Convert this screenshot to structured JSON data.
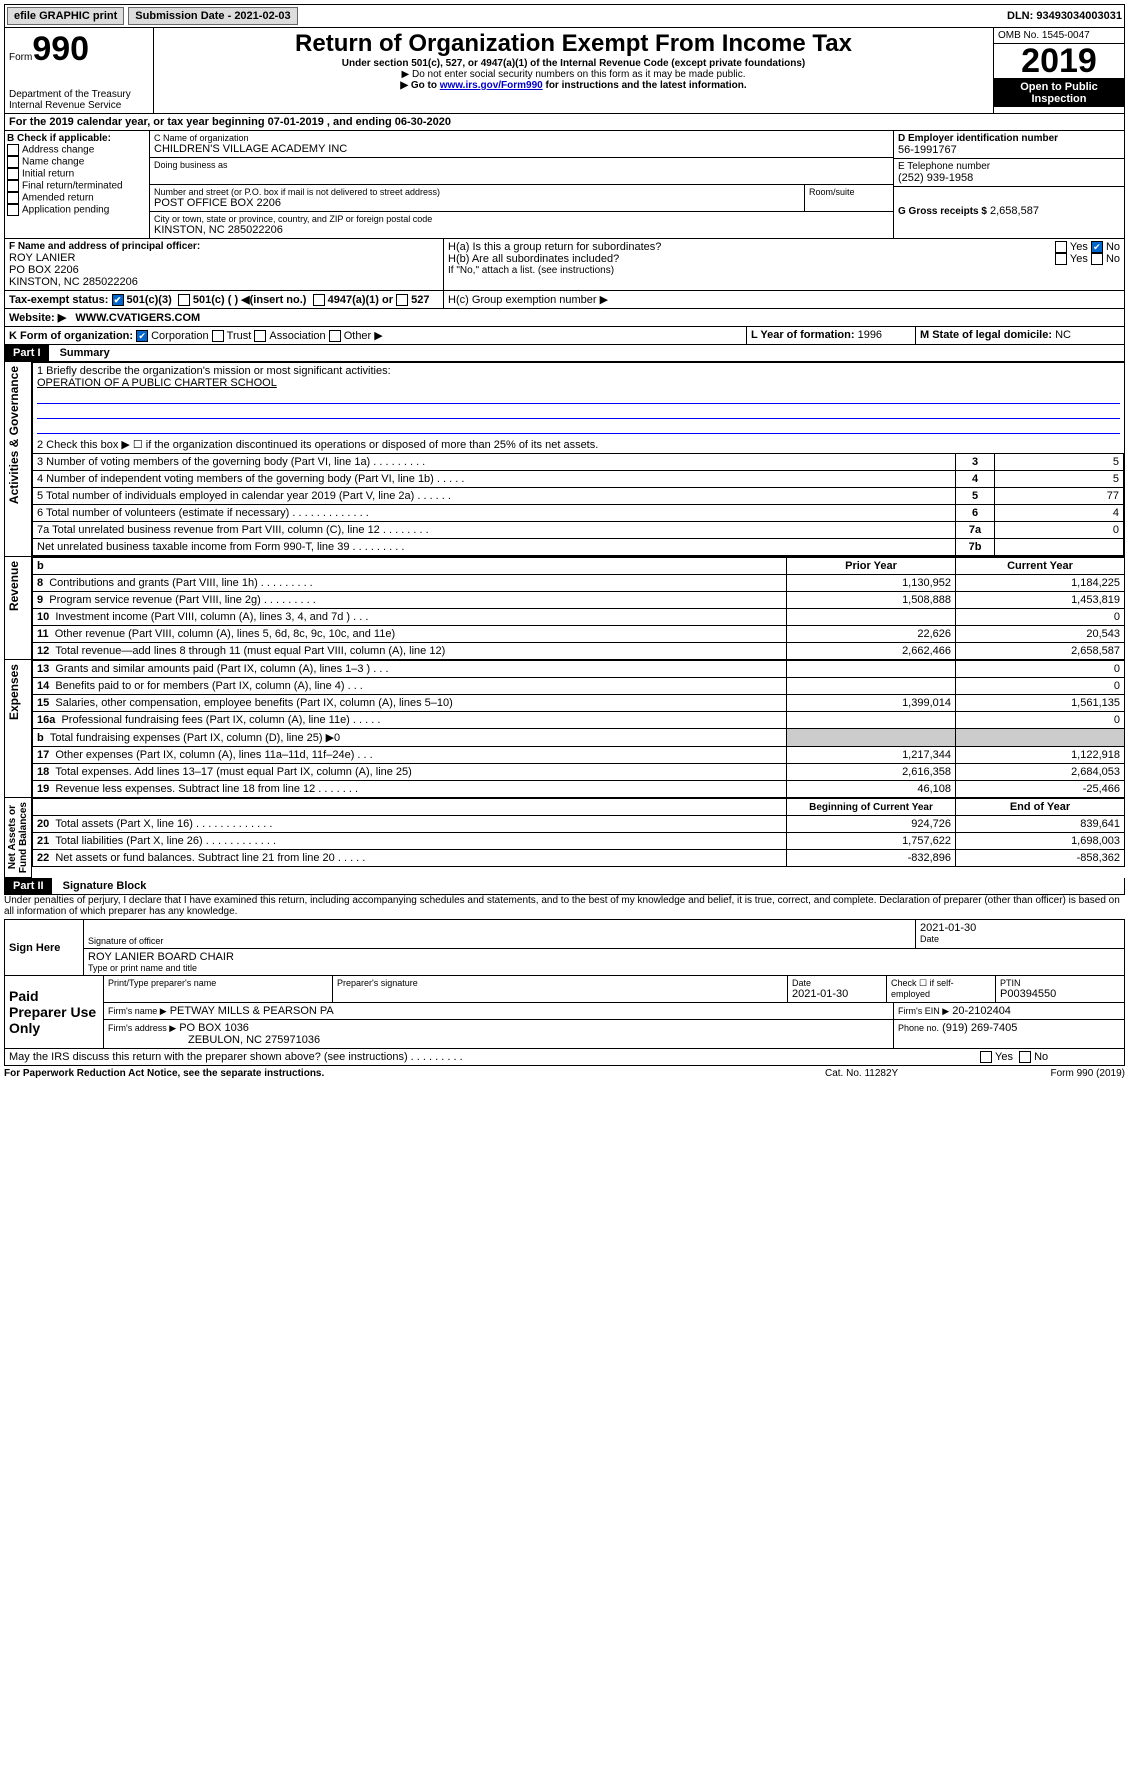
{
  "topbar": {
    "efile": "efile GRAPHIC print",
    "subdate_label": "Submission Date - 2021-02-03",
    "dln": "DLN: 93493034003031"
  },
  "header": {
    "form_label": "Form",
    "form_no": "990",
    "title": "Return of Organization Exempt From Income Tax",
    "subtitle": "Under section 501(c), 527, or 4947(a)(1) of the Internal Revenue Code (except private foundations)",
    "note1": "▶ Do not enter social security numbers on this form as it may be made public.",
    "note2_pre": "▶ Go to ",
    "note2_link": "www.irs.gov/Form990",
    "note2_post": " for instructions and the latest information.",
    "dept": "Department of the Treasury\nInternal Revenue Service",
    "omb": "OMB No. 1545-0047",
    "year": "2019",
    "open": "Open to Public Inspection"
  },
  "A": {
    "text": "For the 2019 calendar year, or tax year beginning 07-01-2019    , and ending 06-30-2020"
  },
  "B": {
    "label": "B Check if applicable:",
    "addr": "Address change",
    "name": "Name change",
    "init": "Initial return",
    "final": "Final return/terminated",
    "amend": "Amended return",
    "app": "Application pending"
  },
  "C": {
    "name_label": "C Name of organization",
    "name": "CHILDREN'S VILLAGE ACADEMY INC",
    "dba_label": "Doing business as",
    "addr_label": "Number and street (or P.O. box if mail is not delivered to street address)",
    "addr": "POST OFFICE BOX 2206",
    "room_label": "Room/suite",
    "city_label": "City or town, state or province, country, and ZIP or foreign postal code",
    "city": "KINSTON, NC  285022206"
  },
  "D": {
    "label": "D Employer identification number",
    "val": "56-1991767"
  },
  "E": {
    "label": "E Telephone number",
    "val": "(252) 939-1958"
  },
  "G": {
    "label": "G Gross receipts $",
    "val": "2,658,587"
  },
  "F": {
    "label": "F  Name and address of principal officer:",
    "name": "ROY LANIER",
    "addr1": "PO BOX 2206",
    "addr2": "KINSTON, NC  285022206"
  },
  "H": {
    "a": "H(a)  Is this a group return for subordinates?",
    "b": "H(b)  Are all subordinates included?",
    "b_note": "If \"No,\" attach a list. (see instructions)",
    "c": "H(c)  Group exemption number ▶",
    "yes": "Yes",
    "no": "No"
  },
  "I": {
    "label": "Tax-exempt status:",
    "c3": "501(c)(3)",
    "c": "501(c) (  ) ◀(insert no.)",
    "a1": "4947(a)(1) or",
    "s527": "527"
  },
  "J": {
    "label": "Website: ▶",
    "val": "WWW.CVATIGERS.COM"
  },
  "K": {
    "label": "K Form of organization:",
    "corp": "Corporation",
    "trust": "Trust",
    "assoc": "Association",
    "other": "Other ▶"
  },
  "L": {
    "label": "L Year of formation:",
    "val": "1996"
  },
  "M": {
    "label": "M State of legal domicile:",
    "val": "NC"
  },
  "part1": {
    "label": "Part I",
    "title": "Summary"
  },
  "summary": {
    "l1": "1  Briefly describe the organization's mission or most significant activities:",
    "l1v": "OPERATION OF A PUBLIC CHARTER SCHOOL",
    "l2": "2   Check this box ▶ ☐  if the organization discontinued its operations or disposed of more than 25% of its net assets.",
    "l3": "3   Number of voting members of the governing body (Part VI, line 1a)  .   .   .   .   .   .   .   .   .",
    "l4": "4   Number of independent voting members of the governing body (Part VI, line 1b)  .   .   .   .   .",
    "l5": "5   Total number of individuals employed in calendar year 2019 (Part V, line 2a)  .   .   .   .   .   .",
    "l6": "6   Total number of volunteers (estimate if necessary)  .   .   .   .   .   .   .   .   .   .   .   .   .",
    "l7a": "7a  Total unrelated business revenue from Part VIII, column (C), line 12  .   .   .   .   .   .   .   .",
    "l7b": "     Net unrelated business taxable income from Form 990-T, line 39  .   .   .   .   .   .   .   .   .",
    "v3": "5",
    "v4": "5",
    "v5": "77",
    "v6": "4",
    "v7a": "0",
    "v7b": "",
    "lab3": "3",
    "lab4": "4",
    "lab5": "5",
    "lab6": "6",
    "lab7a": "7a",
    "lab7b": "7b"
  },
  "revhdr": {
    "b": "b",
    "prior": "Prior Year",
    "curr": "Current Year"
  },
  "rev": [
    {
      "n": "8",
      "t": "Contributions and grants (Part VIII, line 1h)  .   .   .   .   .   .   .   .   .",
      "p": "1,130,952",
      "c": "1,184,225"
    },
    {
      "n": "9",
      "t": "Program service revenue (Part VIII, line 2g)  .   .   .   .   .   .   .   .   .",
      "p": "1,508,888",
      "c": "1,453,819"
    },
    {
      "n": "10",
      "t": "Investment income (Part VIII, column (A), lines 3, 4, and 7d )  .   .   .",
      "p": "",
      "c": "0"
    },
    {
      "n": "11",
      "t": "Other revenue (Part VIII, column (A), lines 5, 6d, 8c, 9c, 10c, and 11e)",
      "p": "22,626",
      "c": "20,543"
    },
    {
      "n": "12",
      "t": "Total revenue—add lines 8 through 11 (must equal Part VIII, column (A), line 12)",
      "p": "2,662,466",
      "c": "2,658,587"
    }
  ],
  "exp": [
    {
      "n": "13",
      "t": "Grants and similar amounts paid (Part IX, column (A), lines 1–3 )  .   .   .",
      "p": "",
      "c": "0"
    },
    {
      "n": "14",
      "t": "Benefits paid to or for members (Part IX, column (A), line 4)  .   .   .",
      "p": "",
      "c": "0"
    },
    {
      "n": "15",
      "t": "Salaries, other compensation, employee benefits (Part IX, column (A), lines 5–10)",
      "p": "1,399,014",
      "c": "1,561,135"
    },
    {
      "n": "16a",
      "t": "Professional fundraising fees (Part IX, column (A), line 11e)  .   .   .   .   .",
      "p": "",
      "c": "0"
    },
    {
      "n": "b",
      "t": "Total fundraising expenses (Part IX, column (D), line 25) ▶0",
      "p": "—",
      "c": "—"
    },
    {
      "n": "17",
      "t": "Other expenses (Part IX, column (A), lines 11a–11d, 11f–24e)  .   .   .",
      "p": "1,217,344",
      "c": "1,122,918"
    },
    {
      "n": "18",
      "t": "Total expenses. Add lines 13–17 (must equal Part IX, column (A), line 25)",
      "p": "2,616,358",
      "c": "2,684,053"
    },
    {
      "n": "19",
      "t": "Revenue less expenses. Subtract line 18 from line 12  .   .   .   .   .   .   .",
      "p": "46,108",
      "c": "-25,466"
    }
  ],
  "nethdr": {
    "p": "Beginning of Current Year",
    "c": "End of Year"
  },
  "net": [
    {
      "n": "20",
      "t": "Total assets (Part X, line 16)  .   .   .   .   .   .   .   .   .   .   .   .   .",
      "p": "924,726",
      "c": "839,641"
    },
    {
      "n": "21",
      "t": "Total liabilities (Part X, line 26)  .   .   .   .   .   .   .   .   .   .   .   .",
      "p": "1,757,622",
      "c": "1,698,003"
    },
    {
      "n": "22",
      "t": "Net assets or fund balances. Subtract line 21 from line 20  .   .   .   .   .",
      "p": "-832,896",
      "c": "-858,362"
    }
  ],
  "sides": {
    "gov": "Activities & Governance",
    "rev": "Revenue",
    "exp": "Expenses",
    "net": "Net Assets or\nFund Balances"
  },
  "part2": {
    "label": "Part II",
    "title": "Signature Block"
  },
  "sig": {
    "perjury": "Under penalties of perjury, I declare that I have examined this return, including accompanying schedules and statements, and to the best of my knowledge and belief, it is true, correct, and complete. Declaration of preparer (other than officer) is based on all information of which preparer has any knowledge.",
    "sign_here": "Sign Here",
    "sig_officer": "Signature of officer",
    "date_val": "2021-01-30",
    "date": "Date",
    "name": "ROY LANIER  BOARD CHAIR",
    "name_lbl": "Type or print name and title",
    "paid": "Paid Preparer Use Only",
    "prep_name_lbl": "Print/Type preparer's name",
    "prep_sig_lbl": "Preparer's signature",
    "prep_date_lbl": "Date",
    "prep_date": "2021-01-30",
    "check_self": "Check ☐ if self-employed",
    "ptin_lbl": "PTIN",
    "ptin": "P00394550",
    "firm_name_lbl": "Firm's name    ▶",
    "firm_name": "PETWAY MILLS & PEARSON PA",
    "firm_ein_lbl": "Firm's EIN ▶",
    "firm_ein": "20-2102404",
    "firm_addr_lbl": "Firm's address ▶",
    "firm_addr": "PO BOX 1036",
    "firm_city": "ZEBULON, NC  275971036",
    "phone_lbl": "Phone no.",
    "phone": "(919) 269-7405",
    "discuss": "May the IRS discuss this return with the preparer shown above? (see instructions)   .   .   .   .   .   .   .   .   .",
    "yes": "Yes",
    "no": "No"
  },
  "footer": {
    "pra": "For Paperwork Reduction Act Notice, see the separate instructions.",
    "cat": "Cat. No. 11282Y",
    "form": "Form 990 (2019)"
  }
}
